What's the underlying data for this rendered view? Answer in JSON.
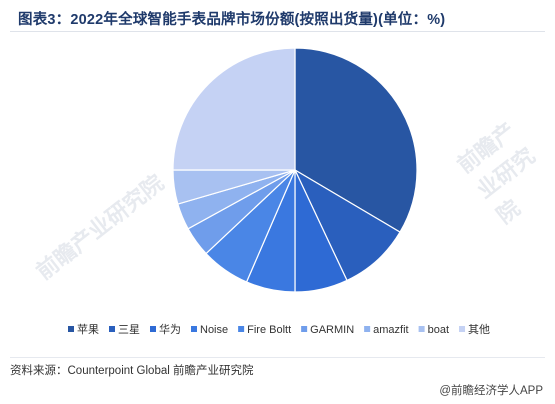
{
  "title": "图表3：2022年全球智能手表品牌市场份额(按照出货量)(单位：%)",
  "source": "资料来源：Counterpoint Global 前瞻产业研究院",
  "credit": "@前瞻经济学人APP",
  "watermarks": [
    "前瞻产业研究院",
    "前瞻产业研究院"
  ],
  "chart_data": {
    "type": "pie",
    "title": "图表3：2022年全球智能手表品牌市场份额(按照出货量)(单位：%)",
    "legend_position": "bottom",
    "series": [
      {
        "name": "苹果",
        "value": 33.5,
        "color": "#2856a3"
      },
      {
        "name": "三星",
        "value": 9.5,
        "color": "#2a5fbd"
      },
      {
        "name": "华为",
        "value": 7.0,
        "color": "#2e6ad4"
      },
      {
        "name": "Noise",
        "value": 6.5,
        "color": "#3a78e0"
      },
      {
        "name": "Fire Boltt",
        "value": 6.5,
        "color": "#4a86e6"
      },
      {
        "name": "GARMIN",
        "value": 4.0,
        "color": "#6f9deb"
      },
      {
        "name": "amazfit",
        "value": 3.5,
        "color": "#8fb2ef"
      },
      {
        "name": "boat",
        "value": 4.5,
        "color": "#a8c1f1"
      },
      {
        "name": "其他",
        "value": 25.0,
        "color": "#c5d2f4"
      }
    ]
  }
}
